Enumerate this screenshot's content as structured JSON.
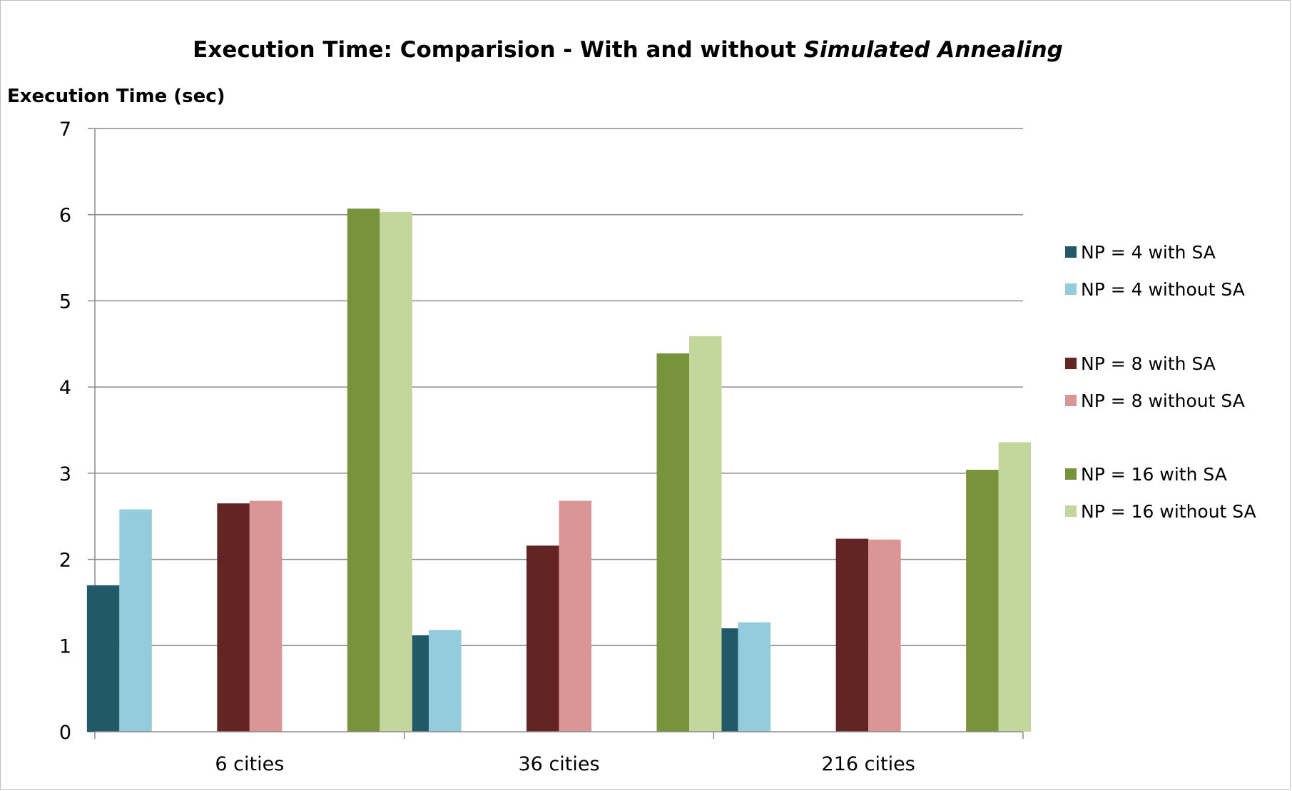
{
  "chart_data": {
    "type": "bar",
    "title": {
      "text": "Execution Time: Comparision - With and without ",
      "emphasis": "Simulated Annealing"
    },
    "ylabel": "Execution Time (sec)",
    "xlabel": "",
    "categories": [
      "6 cities",
      "36 cities",
      "216 cities"
    ],
    "ylim": [
      0,
      7
    ],
    "yticks": [
      0,
      1,
      2,
      3,
      4,
      5,
      6,
      7
    ],
    "grid": true,
    "legend_position": "right",
    "series": [
      {
        "name": "NP = 4 with SA",
        "color": "#215968",
        "values": [
          1.7,
          1.12,
          1.2
        ]
      },
      {
        "name": "NP = 4 without SA",
        "color": "#93CDDD",
        "values": [
          2.58,
          1.18,
          1.27
        ]
      },
      {
        "name": "NP = 8 with SA",
        "color": "#632523",
        "values": [
          2.65,
          2.16,
          2.24
        ]
      },
      {
        "name": "NP = 8 without SA",
        "color": "#D99694",
        "values": [
          2.68,
          2.68,
          2.23
        ]
      },
      {
        "name": "NP = 16 with SA",
        "color": "#77933C",
        "values": [
          6.07,
          4.39,
          3.04
        ]
      },
      {
        "name": "NP = 16 without SA",
        "color": "#C3D69B",
        "values": [
          6.03,
          4.59,
          3.36
        ]
      }
    ]
  }
}
